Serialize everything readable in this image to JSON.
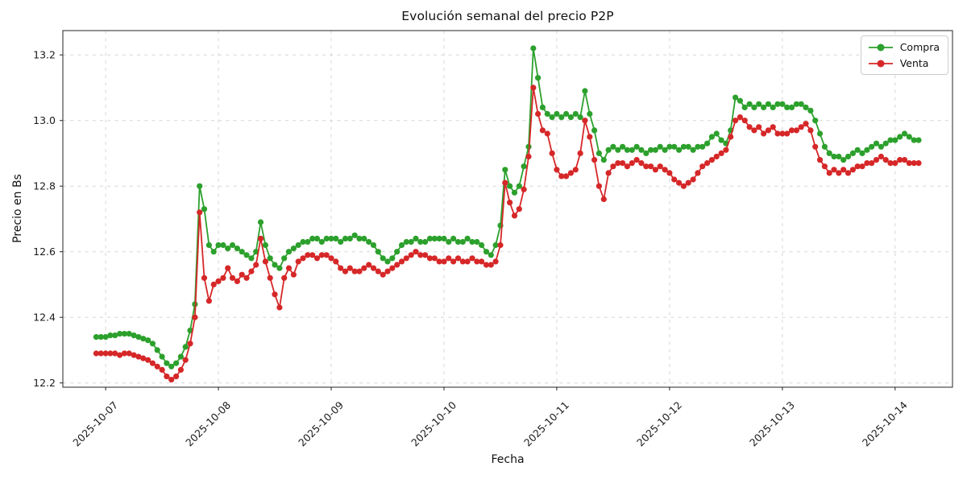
{
  "chart_data": {
    "type": "line",
    "title": "Evolución semanal del precio P2P",
    "xlabel": "Fecha",
    "ylabel": "Precio en Bs",
    "grid": true,
    "legend_position": "upper right",
    "x_tick_labels": [
      "2025-10-07",
      "2025-10-08",
      "2025-10-09",
      "2025-10-10",
      "2025-10-11",
      "2025-10-12",
      "2025-10-13",
      "2025-10-14"
    ],
    "x_tick_hours": [
      0,
      24,
      48,
      72,
      96,
      120,
      144,
      168
    ],
    "y_tick_labels": [
      "12.2",
      "12.4",
      "12.6",
      "12.8",
      "13.0",
      "13.2"
    ],
    "y_tick_values": [
      12.2,
      12.4,
      12.6,
      12.8,
      13.0,
      13.2
    ],
    "xlim_hours": [
      -9.1,
      180.2
    ],
    "ylim": [
      12.187,
      13.274
    ],
    "x_start_hour": -2,
    "x_step_hours": 1,
    "series": [
      {
        "name": "Compra",
        "color": "#2ca02c",
        "values": [
          12.34,
          12.34,
          12.34,
          12.345,
          12.345,
          12.35,
          12.35,
          12.35,
          12.345,
          12.34,
          12.335,
          12.33,
          12.32,
          12.3,
          12.28,
          12.26,
          12.25,
          12.26,
          12.28,
          12.31,
          12.36,
          12.44,
          12.8,
          12.73,
          12.62,
          12.6,
          12.62,
          12.62,
          12.61,
          12.62,
          12.61,
          12.6,
          12.59,
          12.58,
          12.6,
          12.69,
          12.62,
          12.58,
          12.56,
          12.55,
          12.58,
          12.6,
          12.61,
          12.62,
          12.63,
          12.63,
          12.64,
          12.64,
          12.63,
          12.64,
          12.64,
          12.64,
          12.63,
          12.64,
          12.64,
          12.65,
          12.64,
          12.64,
          12.63,
          12.62,
          12.6,
          12.58,
          12.57,
          12.58,
          12.6,
          12.62,
          12.63,
          12.63,
          12.64,
          12.63,
          12.63,
          12.64,
          12.64,
          12.64,
          12.64,
          12.63,
          12.64,
          12.63,
          12.63,
          12.64,
          12.63,
          12.63,
          12.62,
          12.6,
          12.59,
          12.62,
          12.68,
          12.85,
          12.8,
          12.78,
          12.8,
          12.86,
          12.92,
          13.22,
          13.13,
          13.04,
          13.02,
          13.01,
          13.02,
          13.01,
          13.02,
          13.01,
          13.02,
          13.01,
          13.09,
          13.02,
          12.97,
          12.9,
          12.88,
          12.91,
          12.92,
          12.91,
          12.92,
          12.91,
          12.91,
          12.92,
          12.91,
          12.9,
          12.91,
          12.91,
          12.92,
          12.91,
          12.92,
          12.92,
          12.91,
          12.92,
          12.92,
          12.91,
          12.92,
          12.92,
          12.93,
          12.95,
          12.96,
          12.94,
          12.93,
          12.97,
          13.07,
          13.06,
          13.04,
          13.05,
          13.04,
          13.05,
          13.04,
          13.05,
          13.04,
          13.05,
          13.05,
          13.04,
          13.04,
          13.05,
          13.05,
          13.04,
          13.03,
          13.0,
          12.96,
          12.92,
          12.9,
          12.89,
          12.89,
          12.88,
          12.89,
          12.9,
          12.91,
          12.9,
          12.91,
          12.92,
          12.93,
          12.92,
          12.93,
          12.94,
          12.94,
          12.95,
          12.96,
          12.95,
          12.94,
          12.94
        ]
      },
      {
        "name": "Venta",
        "color": "#d62728",
        "values": [
          12.29,
          12.29,
          12.29,
          12.29,
          12.29,
          12.285,
          12.29,
          12.29,
          12.285,
          12.28,
          12.275,
          12.27,
          12.26,
          12.25,
          12.24,
          12.22,
          12.21,
          12.22,
          12.24,
          12.27,
          12.32,
          12.4,
          12.72,
          12.52,
          12.45,
          12.5,
          12.51,
          12.52,
          12.55,
          12.52,
          12.51,
          12.53,
          12.52,
          12.54,
          12.56,
          12.64,
          12.57,
          12.52,
          12.47,
          12.43,
          12.52,
          12.55,
          12.53,
          12.57,
          12.58,
          12.59,
          12.59,
          12.58,
          12.59,
          12.59,
          12.58,
          12.57,
          12.55,
          12.54,
          12.55,
          12.54,
          12.54,
          12.55,
          12.56,
          12.55,
          12.54,
          12.53,
          12.54,
          12.55,
          12.56,
          12.57,
          12.58,
          12.59,
          12.6,
          12.59,
          12.59,
          12.58,
          12.58,
          12.57,
          12.57,
          12.58,
          12.57,
          12.58,
          12.57,
          12.57,
          12.58,
          12.57,
          12.57,
          12.56,
          12.56,
          12.57,
          12.62,
          12.81,
          12.75,
          12.71,
          12.73,
          12.79,
          12.89,
          13.1,
          13.02,
          12.97,
          12.96,
          12.9,
          12.85,
          12.83,
          12.83,
          12.84,
          12.85,
          12.9,
          13.0,
          12.95,
          12.88,
          12.8,
          12.76,
          12.84,
          12.86,
          12.87,
          12.87,
          12.86,
          12.87,
          12.88,
          12.87,
          12.86,
          12.86,
          12.85,
          12.86,
          12.85,
          12.84,
          12.82,
          12.81,
          12.8,
          12.81,
          12.82,
          12.84,
          12.86,
          12.87,
          12.88,
          12.89,
          12.9,
          12.91,
          12.95,
          13.0,
          13.01,
          13.0,
          12.98,
          12.97,
          12.98,
          12.96,
          12.97,
          12.98,
          12.96,
          12.96,
          12.96,
          12.97,
          12.97,
          12.98,
          12.99,
          12.97,
          12.92,
          12.88,
          12.86,
          12.84,
          12.85,
          12.84,
          12.85,
          12.84,
          12.85,
          12.86,
          12.86,
          12.87,
          12.87,
          12.88,
          12.89,
          12.88,
          12.87,
          12.87,
          12.88,
          12.88,
          12.87,
          12.87,
          12.87
        ]
      }
    ]
  }
}
